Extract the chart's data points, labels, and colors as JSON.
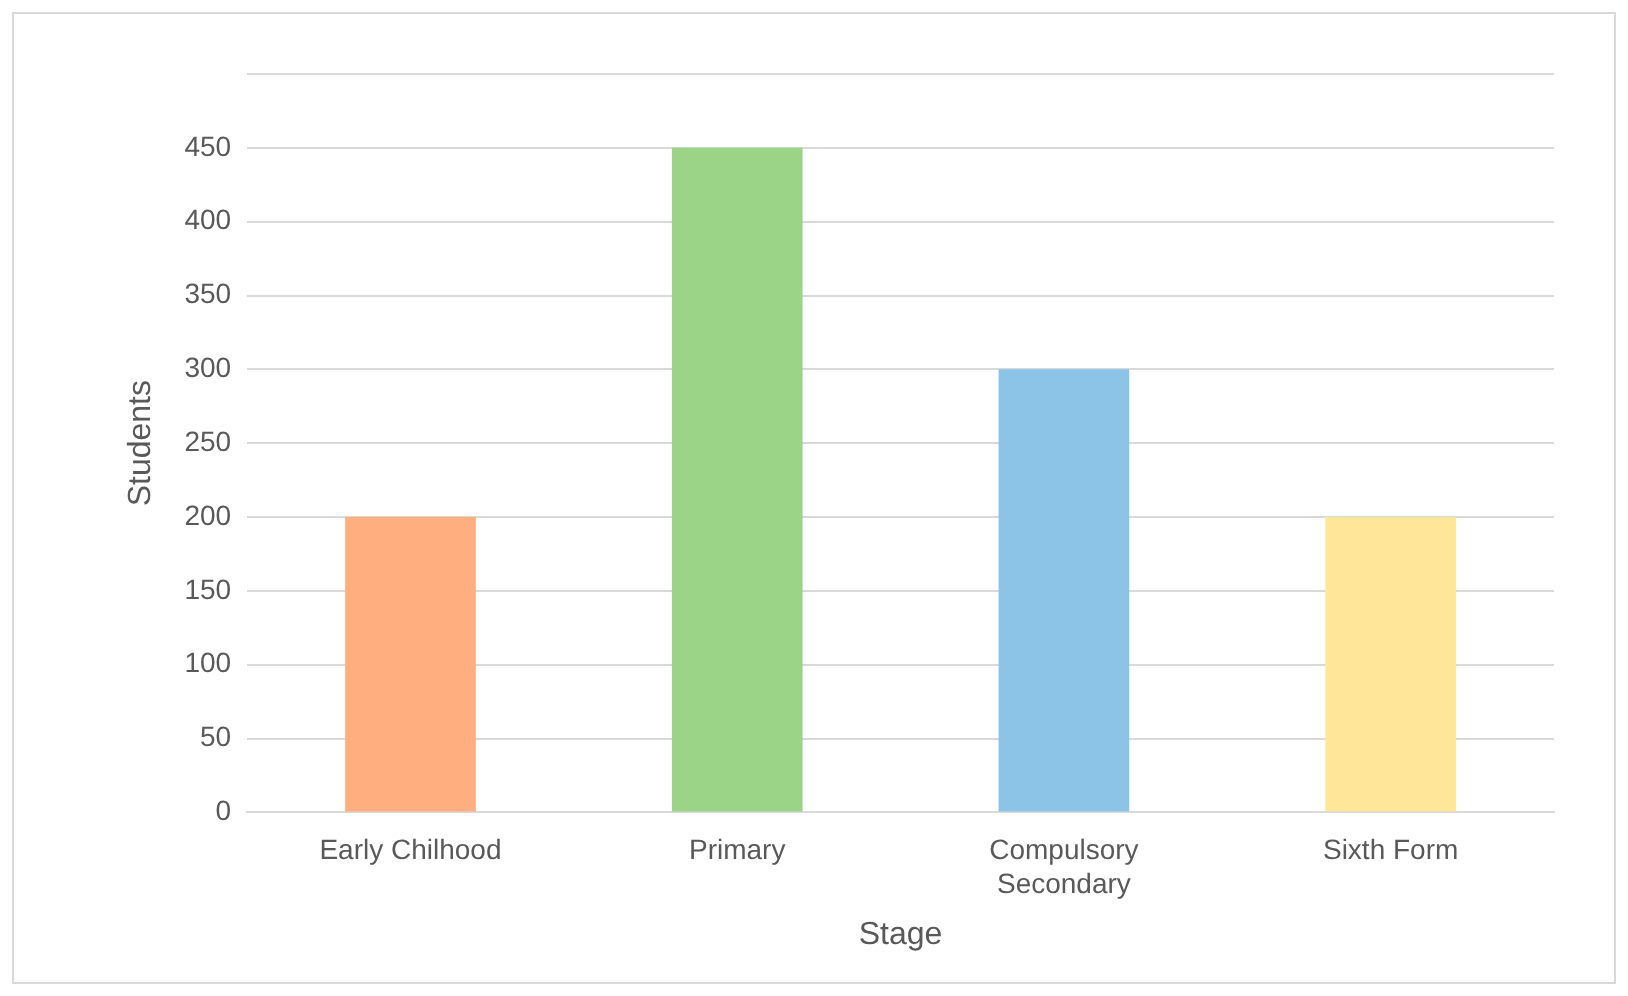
{
  "chart_data": {
    "type": "bar",
    "xlabel": "Stage",
    "ylabel": "Students",
    "categories": [
      "Early Chilhood",
      "Primary",
      "Compulsory Secondary",
      "Sixth Form"
    ],
    "values": [
      200,
      450,
      300,
      200
    ],
    "colors": [
      "#ffae7f",
      "#9bd387",
      "#8cc4e8",
      "#ffe699"
    ],
    "ylim": [
      0,
      500
    ],
    "yticks": [
      0,
      50,
      100,
      150,
      200,
      250,
      300,
      350,
      400,
      450,
      {
        "value": 500,
        "label": null
      }
    ],
    "grid": "y",
    "legend": false
  }
}
